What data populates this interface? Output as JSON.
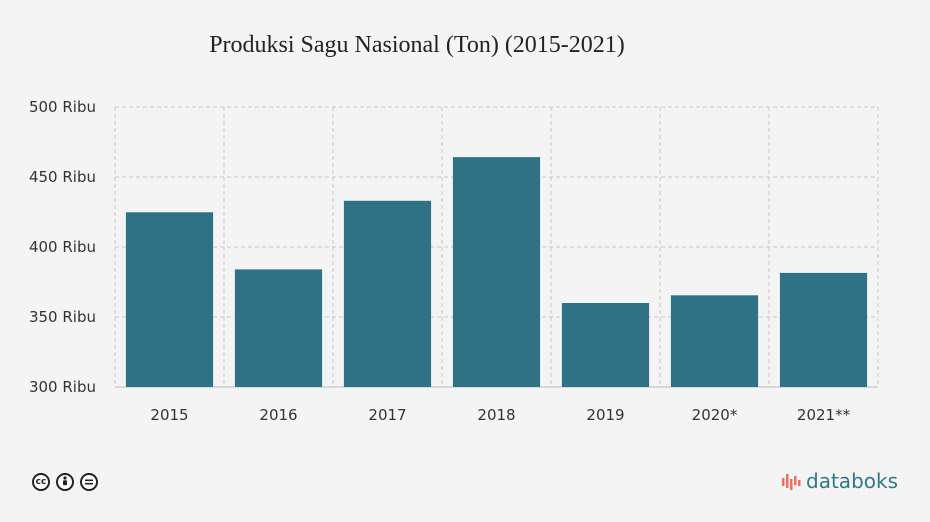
{
  "chart_data": {
    "type": "bar",
    "title": "Produksi Sagu Nasional (Ton) (2015-2021)",
    "categories": [
      "2015",
      "2016",
      "2017",
      "2018",
      "2019",
      "2020*",
      "2021**"
    ],
    "values": [
      424800,
      384000,
      433000,
      464200,
      360000,
      365500,
      381500
    ],
    "ylim": [
      300000,
      500000
    ],
    "yticks": [
      500000,
      450000,
      400000,
      350000,
      300000
    ],
    "ytick_labels": [
      "500 Ribu",
      "450 Ribu",
      "400 Ribu",
      "350 Ribu",
      "300 Ribu"
    ],
    "grid": true,
    "bar_color": "#2f7285"
  },
  "footer": {
    "license_icons": [
      "cc-icon",
      "by-icon",
      "nd-icon"
    ],
    "brand": "databoks",
    "brand_color": "#2e7a8a"
  }
}
